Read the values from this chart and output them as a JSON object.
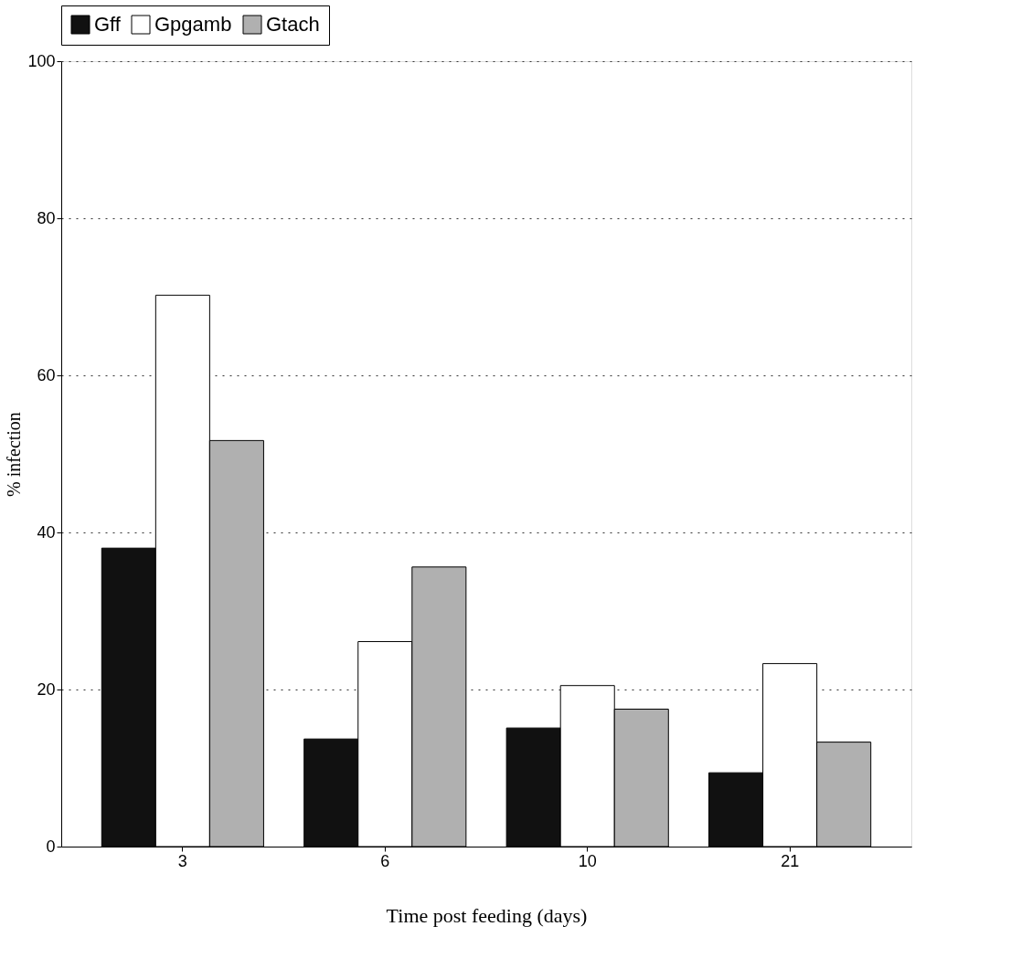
{
  "chart_data": {
    "type": "bar",
    "xlabel": "Time post feeding (days)",
    "ylabel": "% infection",
    "categories": [
      "3",
      "6",
      "10",
      "21"
    ],
    "series": [
      {
        "name": "Gff",
        "color": "#111111",
        "values": [
          38,
          13.7,
          15.1,
          9.4
        ]
      },
      {
        "name": "Gpgamb",
        "color": "#ffffff",
        "values": [
          70.2,
          26.1,
          20.5,
          23.3
        ]
      },
      {
        "name": "Gtach",
        "color": "#b0b0b0",
        "values": [
          51.7,
          35.6,
          17.5,
          13.3
        ]
      }
    ],
    "ylim": [
      0,
      100
    ],
    "yticks": [
      0,
      20,
      40,
      60,
      80,
      100
    ],
    "grid": "y",
    "legend": "top"
  }
}
